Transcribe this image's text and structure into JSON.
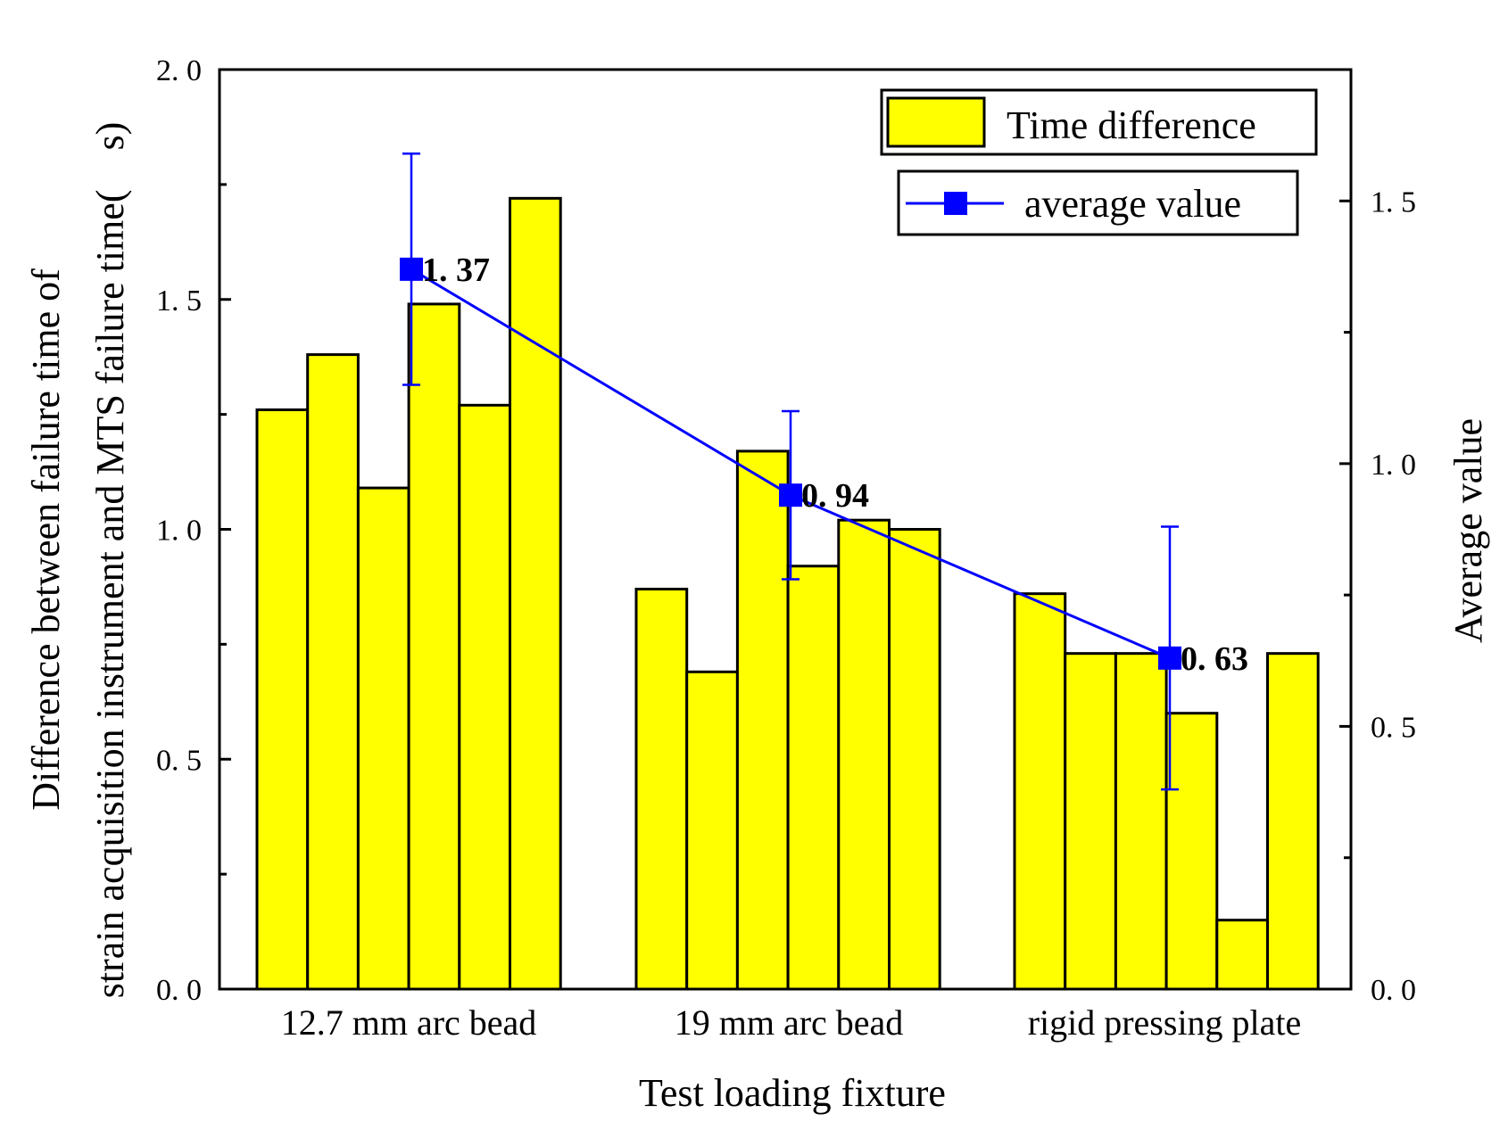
{
  "chart_data": {
    "type": "bar",
    "categories": [
      "12.7 mm arc bead",
      "19 mm arc bead",
      "rigid pressing plate"
    ],
    "series": [
      {
        "name": "Time difference",
        "axis": "left",
        "color": "#ffff00",
        "values": [
          [
            1.26,
            1.38,
            1.09,
            1.49,
            1.27,
            1.72
          ],
          [
            0.87,
            0.69,
            1.17,
            0.92,
            1.02,
            1.0
          ],
          [
            0.86,
            0.73,
            0.73,
            0.6,
            0.15,
            0.73
          ]
        ]
      },
      {
        "name": "average value",
        "axis": "right",
        "type": "line",
        "color": "#0000ff",
        "values": [
          1.37,
          0.94,
          0.63
        ],
        "labels": [
          "1. 37",
          "0. 94",
          "0. 63"
        ],
        "error_low": [
          1.15,
          0.78,
          0.38
        ],
        "error_high": [
          1.59,
          1.1,
          0.88
        ]
      }
    ],
    "xlabel": "Test loading fixture",
    "ylabel_left_line1": "Difference between failure time of",
    "ylabel_left_line2": "strain acquisition instrument and MTS failure time(　s)",
    "ylabel_right": "Average value",
    "ylim_left": [
      0,
      2.0
    ],
    "ylim_right": [
      0,
      1.75
    ],
    "yticks_left": [
      0.0,
      0.5,
      1.0,
      1.5,
      2.0
    ],
    "yticks_left_labels": [
      "0. 0",
      "0. 5",
      "1. 0",
      "1. 5",
      "2. 0"
    ],
    "yticks_right": [
      0.0,
      0.5,
      1.0,
      1.5
    ],
    "yticks_right_labels": [
      "0. 0",
      "0. 5",
      "1. 0",
      "1. 5"
    ],
    "legend": [
      "Time difference",
      "average value"
    ],
    "legend_position": "top-right",
    "grid": false
  }
}
